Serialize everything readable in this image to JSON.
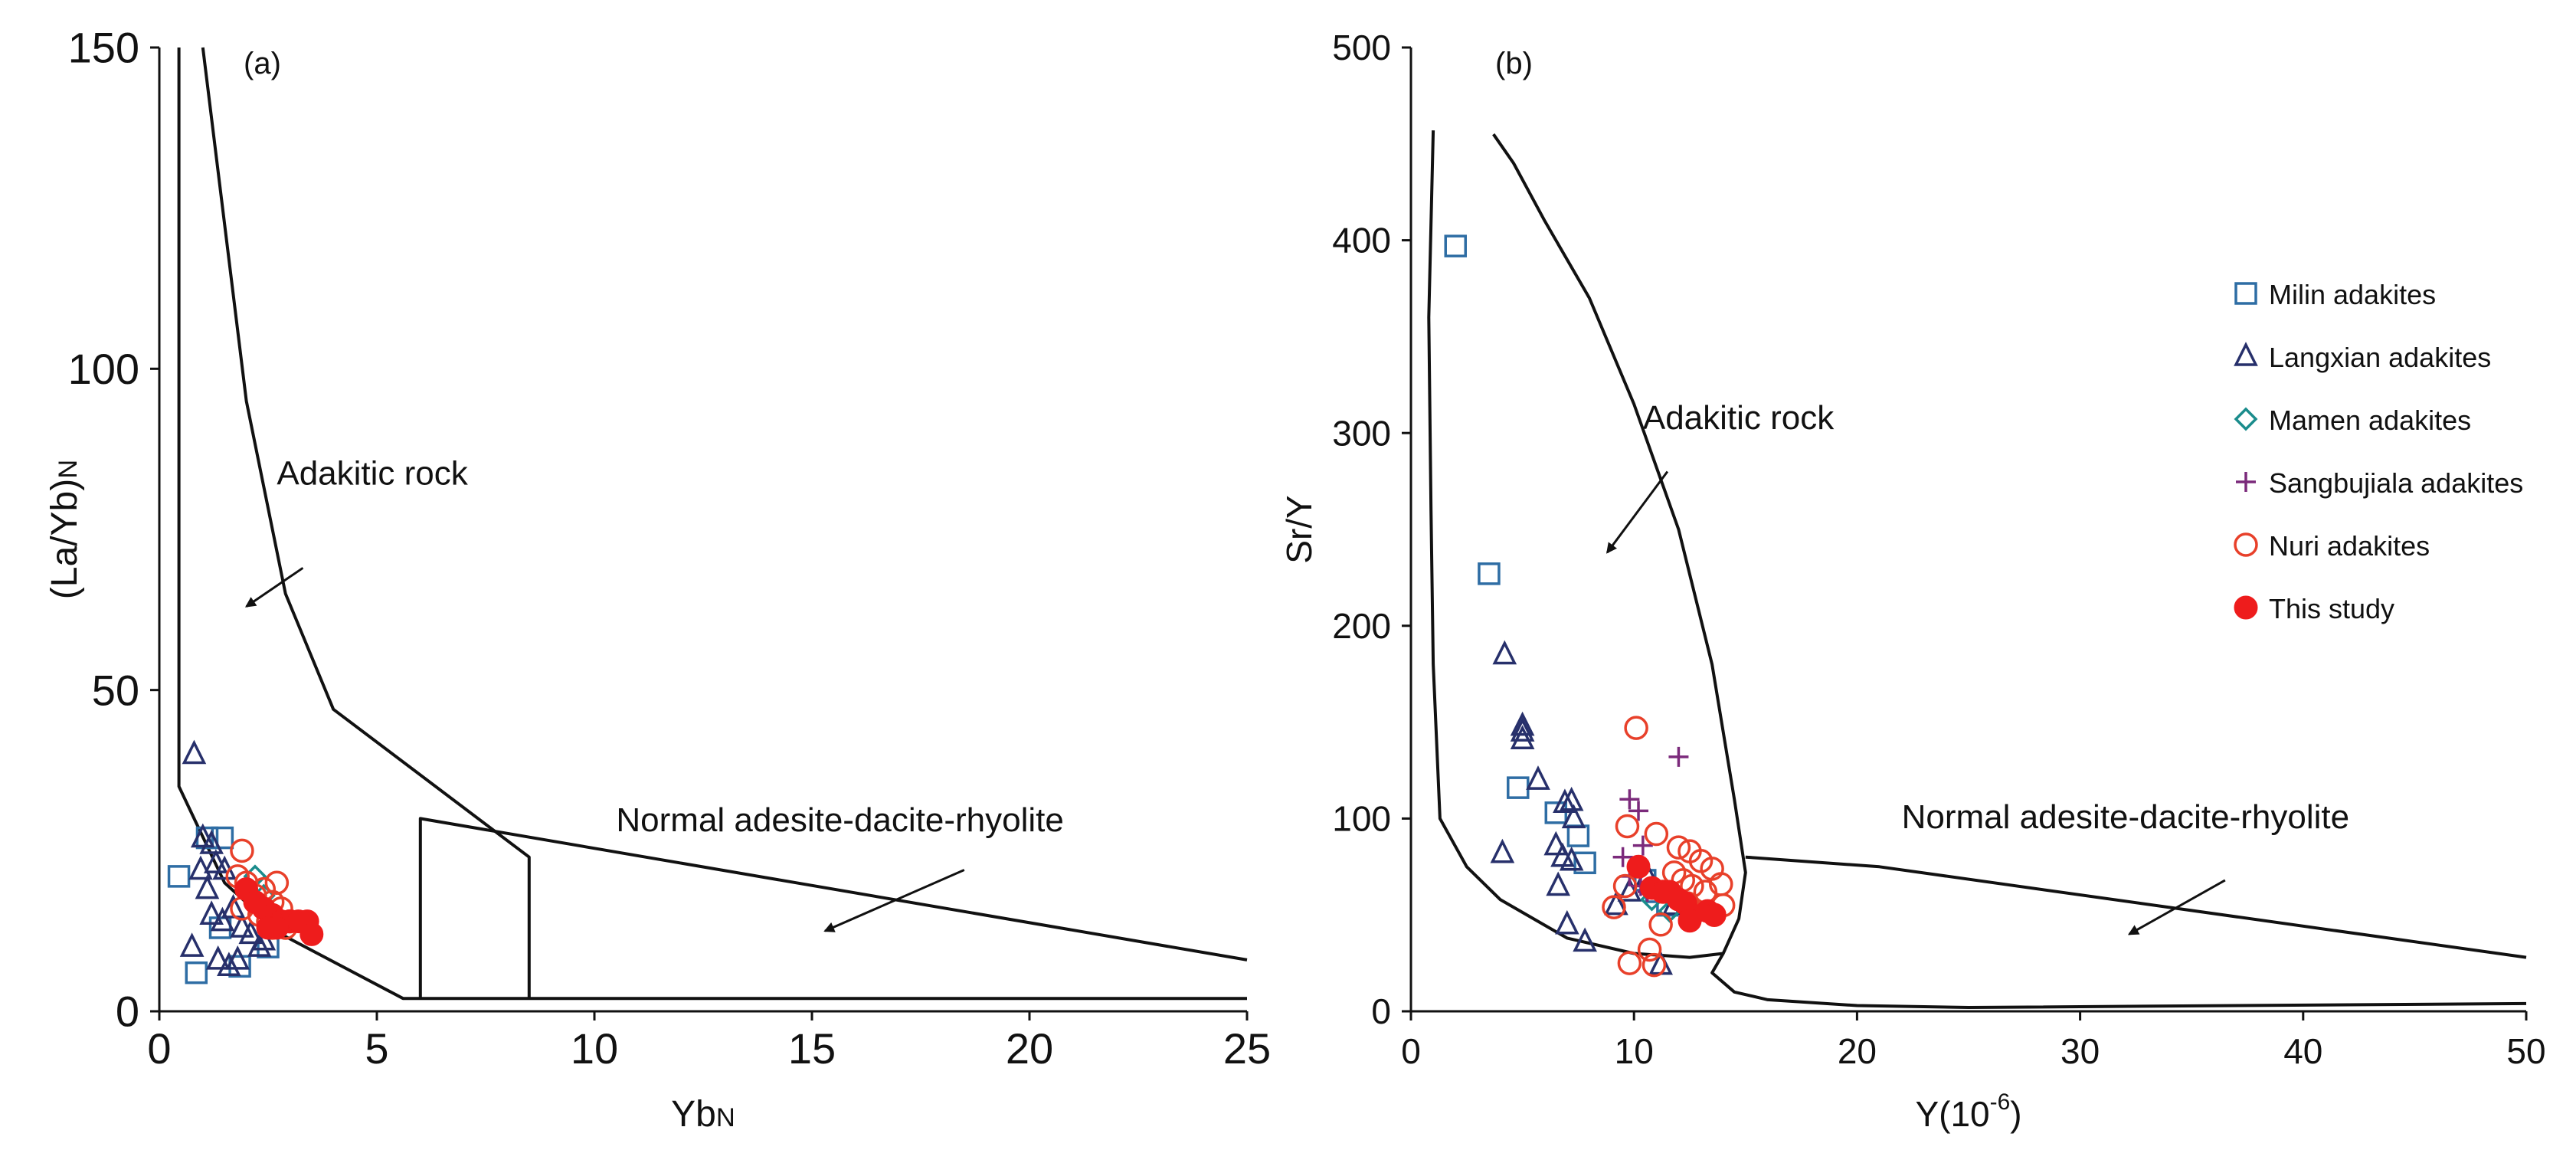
{
  "chart_data": [
    {
      "type": "scatter",
      "panel_label": "(a)",
      "xlabel": "Yb",
      "xlabel_sub": "N",
      "ylabel": "(La/Yb)",
      "ylabel_sub": "N",
      "xlim": [
        0,
        25
      ],
      "ylim": [
        0,
        150
      ],
      "xticks": [
        0,
        5,
        10,
        15,
        20,
        25
      ],
      "yticks": [
        0,
        50,
        100,
        150
      ],
      "regions": [
        {
          "name": "adakitic-boundary",
          "points": [
            [
              0.45,
              150
            ],
            [
              0.45,
              35
            ],
            [
              1.5,
              20
            ],
            [
              2.8,
              12
            ],
            [
              5.6,
              2
            ],
            [
              25,
              2
            ]
          ]
        },
        {
          "name": "adakitic-upper",
          "points": [
            [
              1,
              150
            ],
            [
              2,
              95
            ],
            [
              2.9,
              65
            ],
            [
              4,
              47
            ],
            [
              8.5,
              24
            ],
            [
              8.5,
              2
            ]
          ]
        },
        {
          "name": "normal-field",
          "points": [
            [
              6,
              2
            ],
            [
              6,
              30
            ],
            [
              25,
              8
            ]
          ]
        }
      ],
      "annotations": [
        {
          "text": "Adakitic rock",
          "at": [
            2.7,
            82
          ],
          "arrow_from": [
            3.3,
            69
          ],
          "arrow_to": [
            2.0,
            63
          ]
        },
        {
          "text": "Normal adesite-dacite-rhyolite",
          "at": [
            10.5,
            28
          ],
          "arrow_from": [
            18.5,
            22
          ],
          "arrow_to": [
            15.3,
            12.5
          ]
        }
      ],
      "series": [
        {
          "name": "Milin adakites",
          "marker": "square",
          "color": "#2e6da4",
          "points": [
            [
              0.45,
              21
            ],
            [
              0.85,
              6
            ],
            [
              1.1,
              27
            ],
            [
              1.45,
              27
            ],
            [
              1.85,
              7
            ],
            [
              2.5,
              10
            ],
            [
              1.4,
              13
            ]
          ]
        },
        {
          "name": "Langxian adakites",
          "marker": "triangle",
          "color": "#27306b",
          "points": [
            [
              0.8,
              40
            ],
            [
              0.75,
              10
            ],
            [
              0.95,
              22
            ],
            [
              1.0,
              27
            ],
            [
              1.2,
              26
            ],
            [
              1.3,
              23
            ],
            [
              1.5,
              22
            ],
            [
              1.2,
              15
            ],
            [
              1.45,
              14
            ],
            [
              1.7,
              16
            ],
            [
              1.9,
              13
            ],
            [
              2.1,
              12
            ],
            [
              2.3,
              10
            ],
            [
              1.35,
              8
            ],
            [
              1.6,
              7
            ],
            [
              1.8,
              8
            ],
            [
              2.4,
              11
            ],
            [
              1.1,
              19
            ]
          ]
        },
        {
          "name": "Mamen adakites",
          "marker": "diamond",
          "color": "#1a8c8c",
          "points": [
            [
              2.2,
              21
            ],
            [
              2.4,
              18
            ]
          ]
        },
        {
          "name": "Sangbujiala adakites",
          "marker": "plus",
          "color": "#7b2a7b",
          "points": []
        },
        {
          "name": "Nuri adakites",
          "marker": "circle-open",
          "color": "#e8402a",
          "points": [
            [
              1.9,
              25
            ],
            [
              1.8,
              21
            ],
            [
              2.0,
              20
            ],
            [
              2.2,
              18
            ],
            [
              2.4,
              19
            ],
            [
              2.6,
              17
            ],
            [
              2.7,
              20
            ],
            [
              2.3,
              15
            ],
            [
              2.5,
              14
            ],
            [
              2.8,
              16
            ],
            [
              1.9,
              16
            ],
            [
              3.0,
              14
            ],
            [
              2.6,
              13
            ],
            [
              2.9,
              13
            ]
          ]
        },
        {
          "name": "This study",
          "marker": "circle-filled",
          "color": "#ee1c1c",
          "points": [
            [
              2.0,
              19
            ],
            [
              2.2,
              17
            ],
            [
              2.4,
              16
            ],
            [
              2.6,
              15
            ],
            [
              2.8,
              14
            ],
            [
              3.0,
              14
            ],
            [
              3.2,
              14
            ],
            [
              3.4,
              14
            ],
            [
              3.5,
              12
            ],
            [
              2.5,
              13
            ],
            [
              2.7,
              13
            ]
          ]
        }
      ]
    },
    {
      "type": "scatter",
      "panel_label": "(b)",
      "xlabel": "Y(10",
      "xlabel_sup": "-6",
      "xlabel_tail": ")",
      "ylabel": "Sr/Y",
      "xlim": [
        0,
        50
      ],
      "ylim": [
        0,
        500
      ],
      "xticks": [
        0,
        10,
        20,
        30,
        40,
        50
      ],
      "yticks": [
        0,
        100,
        200,
        300,
        400,
        500
      ],
      "regions": [
        {
          "name": "adakitic-left",
          "points": [
            [
              1,
              457
            ],
            [
              0.8,
              360
            ],
            [
              0.9,
              260
            ],
            [
              1,
              180
            ],
            [
              1.3,
              100
            ],
            [
              2.5,
              75
            ],
            [
              4,
              58
            ],
            [
              7,
              38
            ],
            [
              10,
              30
            ],
            [
              12.5,
              28
            ],
            [
              14,
              30
            ]
          ]
        },
        {
          "name": "adakitic-right",
          "points": [
            [
              3.7,
              455
            ],
            [
              4.6,
              440
            ],
            [
              6,
              410
            ],
            [
              8,
              370
            ],
            [
              10,
              315
            ],
            [
              12,
              250
            ],
            [
              13.5,
              180
            ],
            [
              14.5,
              110
            ],
            [
              15,
              72
            ],
            [
              14.7,
              48
            ],
            [
              14,
              30
            ],
            [
              13.5,
              20
            ],
            [
              14.5,
              10
            ],
            [
              16,
              6
            ],
            [
              20,
              3
            ],
            [
              25,
              2
            ],
            [
              50,
              4
            ]
          ]
        },
        {
          "name": "normal-field",
          "points": [
            [
              15,
              80
            ],
            [
              21,
              75
            ],
            [
              50,
              28
            ]
          ]
        }
      ],
      "annotations": [
        {
          "text": "Adakitic rock",
          "at": [
            10.4,
            302
          ],
          "arrow_from": [
            11.5,
            280
          ],
          "arrow_to": [
            8.8,
            238
          ]
        },
        {
          "text": "Normal adesite-dacite-rhyolite",
          "at": [
            22.0,
            95
          ],
          "arrow_from": [
            36.5,
            68
          ],
          "arrow_to": [
            32.2,
            40
          ]
        }
      ],
      "series": [
        {
          "name": "Milin adakites",
          "marker": "square",
          "color": "#2e6da4",
          "points": [
            [
              2,
              397
            ],
            [
              3.5,
              227
            ],
            [
              4.8,
              116
            ],
            [
              6.5,
              103
            ],
            [
              7.8,
              77
            ],
            [
              7.5,
              91
            ],
            [
              10.5,
              68
            ],
            [
              11.5,
              55
            ],
            [
              11.0,
              62
            ]
          ]
        },
        {
          "name": "Langxian adakites",
          "marker": "triangle",
          "color": "#27306b",
          "points": [
            [
              4.2,
              185
            ],
            [
              5,
              148
            ],
            [
              5,
              145
            ],
            [
              5,
              141
            ],
            [
              5.7,
              120
            ],
            [
              4.1,
              82
            ],
            [
              6.5,
              86
            ],
            [
              6.9,
              108
            ],
            [
              7.2,
              109
            ],
            [
              7.3,
              100
            ],
            [
              6.8,
              80
            ],
            [
              7.2,
              78
            ],
            [
              6.6,
              65
            ],
            [
              7.0,
              45
            ],
            [
              7.8,
              36
            ],
            [
              11.2,
              24
            ],
            [
              9.2,
              55
            ],
            [
              9.8,
              62
            ],
            [
              10.6,
              70
            ],
            [
              11.8,
              55
            ]
          ]
        },
        {
          "name": "Mamen adakites",
          "marker": "diamond",
          "color": "#1a8c8c",
          "points": [
            [
              10.8,
              58
            ],
            [
              11.6,
              52
            ]
          ]
        },
        {
          "name": "Sangbujiala adakites",
          "marker": "plus",
          "color": "#7b2a7b",
          "points": [
            [
              12,
              132
            ],
            [
              9.8,
              110
            ],
            [
              10.2,
              104
            ],
            [
              10.4,
              86
            ],
            [
              9.5,
              80
            ],
            [
              9.8,
              70
            ],
            [
              10.3,
              65
            ],
            [
              10.6,
              62
            ]
          ]
        },
        {
          "name": "Nuri adakites",
          "marker": "circle-open",
          "color": "#e8402a",
          "points": [
            [
              10.1,
              147
            ],
            [
              9.7,
              96
            ],
            [
              11.0,
              92
            ],
            [
              12,
              85
            ],
            [
              12.5,
              83
            ],
            [
              13,
              78
            ],
            [
              13.5,
              74
            ],
            [
              11.8,
              72
            ],
            [
              12.6,
              65
            ],
            [
              13.2,
              62
            ],
            [
              13.9,
              66
            ],
            [
              14.0,
              55
            ],
            [
              12.4,
              56
            ],
            [
              13.6,
              50
            ],
            [
              9.1,
              54
            ],
            [
              9.6,
              65
            ],
            [
              11.3,
              62
            ],
            [
              11.2,
              45
            ],
            [
              10.7,
              32
            ],
            [
              10.9,
              24
            ],
            [
              9.8,
              25
            ],
            [
              12.2,
              68
            ]
          ]
        },
        {
          "name": "This study",
          "marker": "circle-filled",
          "color": "#ee1c1c",
          "points": [
            [
              10.2,
              75
            ],
            [
              10.8,
              64
            ],
            [
              11.3,
              62
            ],
            [
              11.6,
              62
            ],
            [
              12.3,
              56
            ],
            [
              12.6,
              50
            ],
            [
              13.3,
              52
            ],
            [
              12.5,
              47
            ],
            [
              13.6,
              50
            ],
            [
              12.0,
              58
            ]
          ]
        }
      ]
    }
  ],
  "legend": {
    "items": [
      {
        "label": "Milin adakites",
        "marker": "square",
        "color": "#2e6da4"
      },
      {
        "label": "Langxian adakites",
        "marker": "triangle",
        "color": "#27306b"
      },
      {
        "label": "Mamen adakites",
        "marker": "diamond",
        "color": "#1a8c8c"
      },
      {
        "label": "Sangbujiala adakites",
        "marker": "plus",
        "color": "#7b2a7b"
      },
      {
        "label": "Nuri adakites",
        "marker": "circle-open",
        "color": "#e8402a"
      },
      {
        "label": "This study",
        "marker": "circle-filled",
        "color": "#ee1c1c"
      }
    ]
  }
}
